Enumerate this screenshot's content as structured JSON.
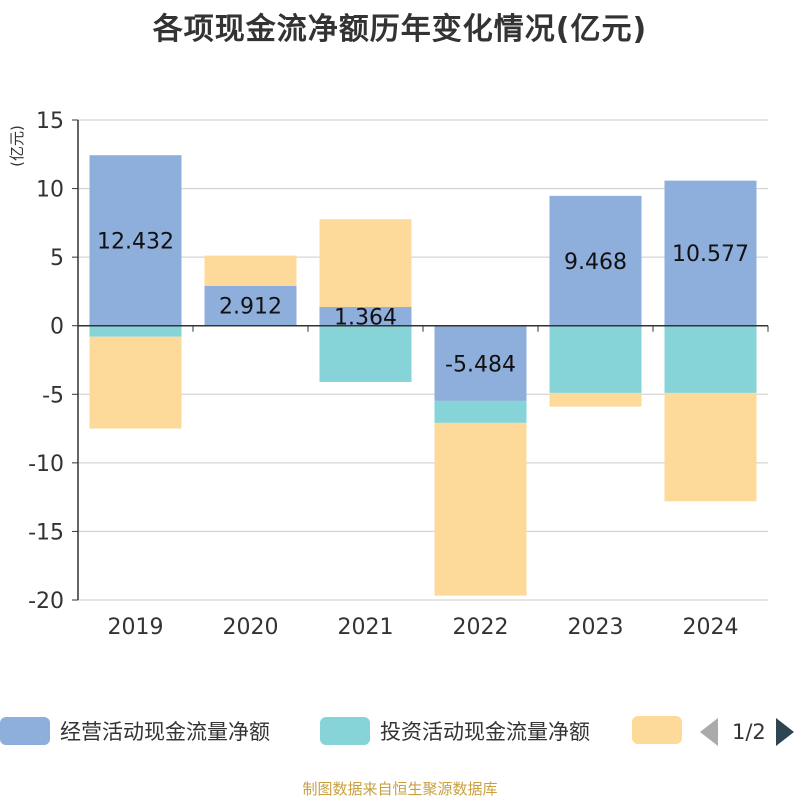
{
  "title": "各项现金流净额历年变化情况(亿元)",
  "source": "制图数据来自恒生聚源数据库",
  "colors": {
    "operating": "#8eaedb",
    "investing": "#86d4d8",
    "financing": "#fdd99a",
    "axis": "#333333",
    "grid": "#cccccc",
    "unit": "#e02020"
  },
  "legend": {
    "items": [
      {
        "label": "经营活动现金流量净额",
        "color": "#8eaedb"
      },
      {
        "label": "投资活动现金流量净额",
        "color": "#86d4d8"
      },
      {
        "label": "",
        "color": "#fdd99a"
      }
    ],
    "pager": "1/2"
  },
  "chart_data": {
    "type": "bar",
    "stacked": true,
    "title": "各项现金流净额历年变化情况(亿元)",
    "ylabel": "(亿元)",
    "xlabel": "",
    "categories": [
      "2019",
      "2020",
      "2021",
      "2022",
      "2023",
      "2024"
    ],
    "ylim": [
      -20,
      15
    ],
    "yticks": [
      15,
      10,
      5,
      0,
      -5,
      -10,
      -15,
      -20
    ],
    "series": [
      {
        "name": "经营活动现金流量净额",
        "values": [
          12.432,
          2.912,
          1.364,
          -5.484,
          9.468,
          10.577
        ],
        "labels": [
          "12.432",
          "2.912",
          "1.364",
          "-5.484",
          "9.468",
          "10.577"
        ]
      },
      {
        "name": "投资活动现金流量净额",
        "values": [
          -0.8,
          0,
          -4.1,
          -1.6,
          -4.9,
          -4.9
        ]
      },
      {
        "name": "",
        "values": [
          -6.7,
          2.2,
          6.4,
          -12.6,
          -1.0,
          -7.9
        ]
      }
    ]
  }
}
